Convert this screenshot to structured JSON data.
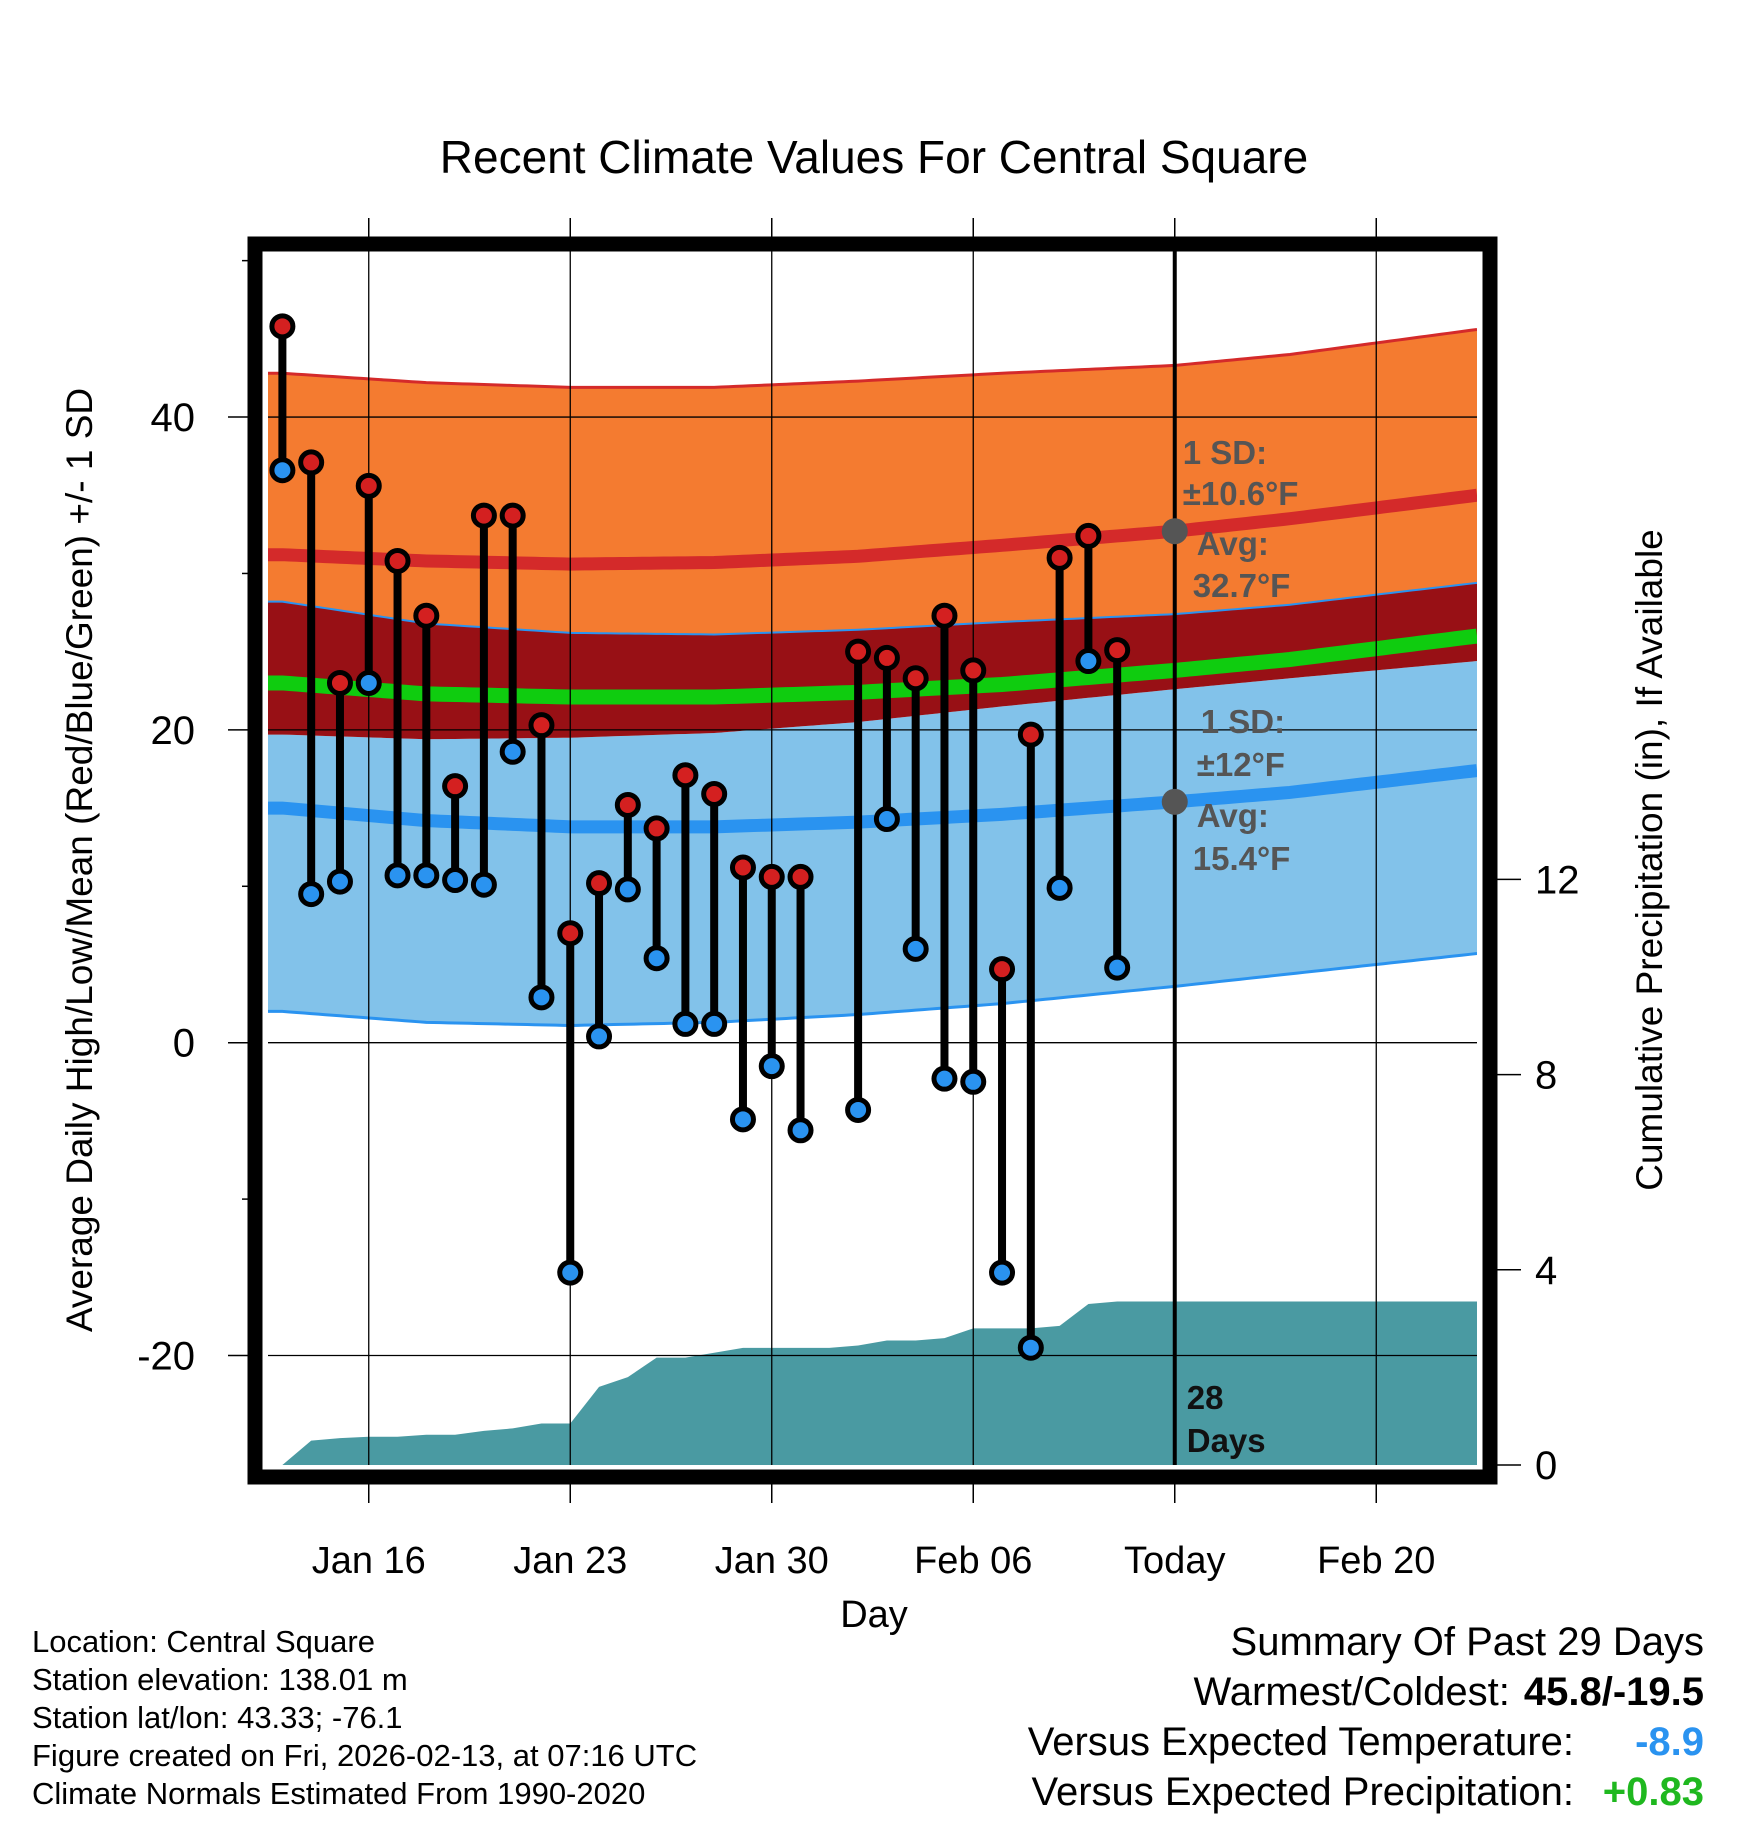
{
  "chart_data": {
    "type": "line",
    "title": "Recent Climate Values For Central Square",
    "xlabel": "Day",
    "ylabel_left": "Average Daily High/Low/Mean (Red/Blue/Green) +/- 1 SD",
    "ylabel_right": "Cumulative Precipitation (in), If Available",
    "ylim_left": [
      -27,
      51
    ],
    "ylim_right": [
      0,
      25
    ],
    "xlim_days": [
      -0.5,
      41.5
    ],
    "x_ticks": [
      {
        "day": 3,
        "label": "Jan 16"
      },
      {
        "day": 10,
        "label": "Jan 23"
      },
      {
        "day": 17,
        "label": "Jan 30"
      },
      {
        "day": 24,
        "label": "Feb 06"
      },
      {
        "day": 31,
        "label": "Today"
      },
      {
        "day": 38,
        "label": "Feb 20"
      }
    ],
    "y_ticks_left": [
      {
        "value": -20,
        "label": "-20"
      },
      {
        "value": 0,
        "label": "0"
      },
      {
        "value": 20,
        "label": "20"
      },
      {
        "value": 40,
        "label": "40"
      }
    ],
    "y_minor_left": [
      -10,
      10,
      30,
      50
    ],
    "y_ticks_right": [
      {
        "value": 0,
        "label": "0"
      },
      {
        "value": 4,
        "label": "4"
      },
      {
        "value": 8,
        "label": "8"
      },
      {
        "value": 12,
        "label": "12"
      }
    ],
    "today_day": 31,
    "normals": {
      "days": [
        0,
        5,
        10,
        15,
        20,
        25,
        31,
        35,
        41.5
      ],
      "high_avg": [
        31.2,
        30.8,
        30.6,
        30.7,
        31.1,
        31.8,
        32.7,
        33.5,
        35.0
      ],
      "high_upper": [
        42.8,
        42.2,
        41.9,
        41.9,
        42.3,
        42.8,
        43.3,
        44.0,
        45.6
      ],
      "high_lower": [
        28.2,
        26.8,
        26.2,
        26.1,
        26.4,
        26.9,
        27.4,
        28.0,
        29.4
      ],
      "mean_avg": [
        23.0,
        22.3,
        22.1,
        22.1,
        22.4,
        22.9,
        23.8,
        24.5,
        26.0
      ],
      "low_avg": [
        15.0,
        14.2,
        13.8,
        13.8,
        14.1,
        14.6,
        15.4,
        16.0,
        17.4
      ],
      "low_upper": [
        19.7,
        19.4,
        19.5,
        19.8,
        20.5,
        21.5,
        22.6,
        23.3,
        24.4
      ],
      "low_lower": [
        2.0,
        1.3,
        1.1,
        1.3,
        1.8,
        2.5,
        3.6,
        4.4,
        5.7
      ]
    },
    "series": [
      {
        "name": "High",
        "color": "#d42020",
        "values": [
          45.8,
          37.1,
          23.0,
          35.6,
          30.8,
          27.3,
          16.4,
          33.7,
          33.7,
          20.3,
          7.0,
          10.2,
          15.2,
          13.7,
          17.1,
          15.9,
          11.2,
          10.6,
          10.6,
          null,
          25.0,
          24.6,
          23.3,
          27.3,
          23.8,
          4.7,
          19.7,
          31.0,
          32.4,
          25.1
        ]
      },
      {
        "name": "Low",
        "color": "#2a93f0",
        "values": [
          36.6,
          9.5,
          10.3,
          23.0,
          10.7,
          10.7,
          10.4,
          10.1,
          18.6,
          2.9,
          -14.7,
          0.4,
          9.8,
          5.4,
          1.2,
          1.2,
          -4.9,
          -1.5,
          -5.6,
          null,
          -4.3,
          14.3,
          6.0,
          -2.3,
          -2.5,
          -14.7,
          -19.5,
          9.9,
          24.4,
          4.8
        ]
      }
    ],
    "precip_cumulative": {
      "days": [
        0,
        1,
        2,
        3,
        4,
        5,
        6,
        7,
        8,
        9,
        10,
        11,
        12,
        13,
        14,
        15,
        16,
        17,
        18,
        19,
        20,
        21,
        22,
        23,
        24,
        25,
        26,
        27,
        28,
        29,
        30,
        31,
        41.5
      ],
      "values": [
        0.0,
        0.5,
        0.55,
        0.58,
        0.58,
        0.62,
        0.62,
        0.7,
        0.75,
        0.85,
        0.85,
        1.6,
        1.8,
        2.2,
        2.2,
        2.3,
        2.4,
        2.4,
        2.4,
        2.4,
        2.45,
        2.55,
        2.55,
        2.6,
        2.8,
        2.8,
        2.8,
        2.85,
        3.3,
        3.35,
        3.35,
        3.35,
        3.35
      ]
    },
    "annotations": {
      "high_sd": "1 SD:",
      "high_sd_value": "±10.6°F",
      "high_avg_label": "Avg:",
      "high_avg_value": "32.7°F",
      "low_sd": "1 SD:",
      "low_sd_value": "±12°F",
      "low_avg_label": "Avg:",
      "low_avg_value": "15.4°F",
      "days_count": "28",
      "days_word": "Days"
    },
    "colors": {
      "high_band": "#f47b30",
      "high_line": "#d42a2a",
      "mean_band": "#981015",
      "mean_line": "#0fcc0f",
      "low_band": "#82c2ea",
      "low_line": "#2a93f0",
      "precip": "#4a9aa2",
      "marker_high": "#d42020",
      "marker_low": "#2a93f0",
      "annotation": "#555555"
    }
  },
  "info": {
    "location": "Location: Central Square",
    "elevation": "Station elevation: 138.01 m",
    "latlon": "Station lat/lon: 43.33; -76.1",
    "created": "Figure created on Fri, 2026-02-13, at 07:16 UTC",
    "normals": "Climate Normals Estimated From 1990-2020"
  },
  "summary": {
    "title": "Summary Of Past 29 Days",
    "extremes_label": "Warmest/Coldest:",
    "extremes_value": "45.8/-19.5",
    "temp_label": "Versus Expected Temperature:",
    "temp_value": "-8.9",
    "precip_label": "Versus Expected Precipitation:",
    "precip_value": "+0.83"
  }
}
